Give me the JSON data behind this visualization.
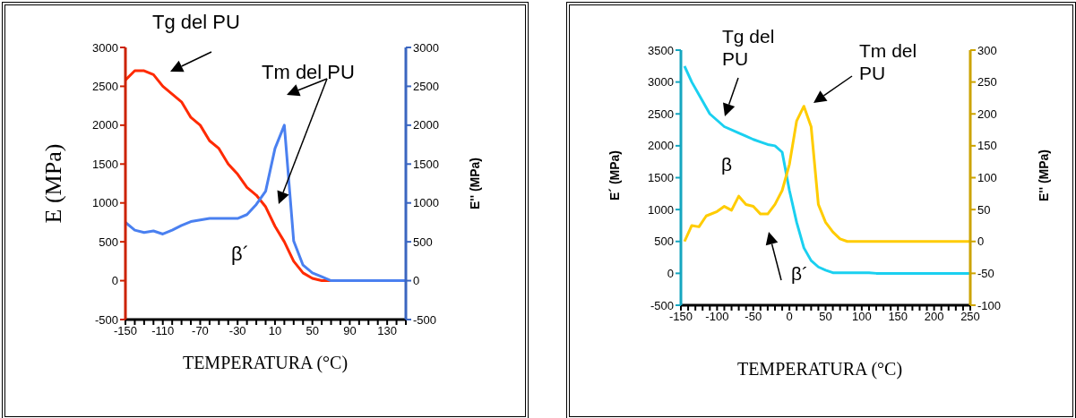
{
  "chart_data": [
    {
      "type": "line",
      "xlabel": "TEMPERATURA (°C)",
      "ylabel": "E (MPa)",
      "y2label": "E'' (MPa)",
      "xlim": [
        -150,
        150
      ],
      "xticks": [
        -150,
        {
          "value": -140,
          "label": null
        },
        {
          "value": -130,
          "label": null
        },
        {
          "value": -120,
          "label": null
        },
        -110,
        {
          "value": -100,
          "label": null
        },
        {
          "value": -90,
          "label": null
        },
        {
          "value": -80,
          "label": null
        },
        -70,
        {
          "value": -60,
          "label": null
        },
        {
          "value": -50,
          "label": null
        },
        {
          "value": -40,
          "label": null
        },
        -30,
        {
          "value": -20,
          "label": null
        },
        {
          "value": -10,
          "label": null
        },
        {
          "value": 0,
          "label": null
        },
        10,
        {
          "value": 20,
          "label": null
        },
        {
          "value": 30,
          "label": null
        },
        {
          "value": 40,
          "label": null
        },
        50,
        {
          "value": 60,
          "label": null
        },
        {
          "value": 70,
          "label": null
        },
        {
          "value": 80,
          "label": null
        },
        90,
        {
          "value": 100,
          "label": null
        },
        {
          "value": 110,
          "label": null
        },
        {
          "value": 120,
          "label": null
        },
        130,
        {
          "value": 140,
          "label": null
        },
        {
          "value": 150,
          "label": null
        }
      ],
      "ylim": [
        -500,
        3000
      ],
      "yticks": [
        -500,
        0,
        500,
        1000,
        1500,
        2000,
        2500,
        3000
      ],
      "y2lim": [
        -500,
        3000
      ],
      "y2ticks": [
        -500,
        0,
        500,
        1000,
        1500,
        2000,
        2500,
        3000
      ],
      "series": [
        {
          "color": "#ff2a00",
          "x": [
            -150,
            -140,
            -130,
            -120,
            -110,
            -100,
            -90,
            -80,
            -70,
            -60,
            -50,
            -40,
            -30,
            -20,
            -10,
            0,
            10,
            20,
            30,
            40,
            50,
            60,
            70
          ],
          "values": [
            2580,
            2700,
            2700,
            2650,
            2500,
            2400,
            2300,
            2100,
            2000,
            1800,
            1700,
            1500,
            1370,
            1200,
            1100,
            950,
            700,
            500,
            250,
            100,
            30,
            0,
            0
          ]
        },
        {
          "color": "#4a80f0",
          "axis": "y2",
          "x": [
            -150,
            -140,
            -130,
            -120,
            -110,
            -100,
            -90,
            -80,
            -70,
            -60,
            -50,
            -40,
            -30,
            -20,
            -10,
            0,
            10,
            20,
            30,
            40,
            50,
            60,
            70,
            80,
            90,
            100,
            110,
            120,
            130,
            140,
            150
          ],
          "values": [
            750,
            650,
            620,
            640,
            600,
            650,
            710,
            760,
            780,
            800,
            800,
            800,
            800,
            850,
            980,
            1150,
            1700,
            2000,
            510,
            200,
            100,
            50,
            0,
            0,
            0,
            0,
            0,
            0,
            0,
            0,
            0
          ]
        }
      ],
      "annotations": [
        "Tg del PU",
        "Tm del PU",
        "β´"
      ]
    },
    {
      "type": "line",
      "xlabel": "TEMPERATURA (°C)",
      "ylabel": "E´ (MPa)",
      "y2label": "E'' (MPa)",
      "xlim": [
        -150,
        250
      ],
      "xticks": [
        -150,
        {
          "value": -140,
          "label": null
        },
        {
          "value": -130,
          "label": null
        },
        {
          "value": -120,
          "label": null
        },
        {
          "value": -110,
          "label": null
        },
        -100,
        {
          "value": -90,
          "label": null
        },
        {
          "value": -80,
          "label": null
        },
        {
          "value": -70,
          "label": null
        },
        {
          "value": -60,
          "label": null
        },
        -50,
        {
          "value": -40,
          "label": null
        },
        {
          "value": -30,
          "label": null
        },
        {
          "value": -20,
          "label": null
        },
        {
          "value": -10,
          "label": null
        },
        0,
        {
          "value": 10,
          "label": null
        },
        {
          "value": 20,
          "label": null
        },
        {
          "value": 30,
          "label": null
        },
        {
          "value": 40,
          "label": null
        },
        50,
        {
          "value": 60,
          "label": null
        },
        {
          "value": 70,
          "label": null
        },
        {
          "value": 80,
          "label": null
        },
        {
          "value": 90,
          "label": null
        },
        100,
        {
          "value": 110,
          "label": null
        },
        {
          "value": 120,
          "label": null
        },
        {
          "value": 130,
          "label": null
        },
        {
          "value": 140,
          "label": null
        },
        150,
        {
          "value": 160,
          "label": null
        },
        {
          "value": 170,
          "label": null
        },
        {
          "value": 180,
          "label": null
        },
        {
          "value": 190,
          "label": null
        },
        200,
        {
          "value": 210,
          "label": null
        },
        {
          "value": 220,
          "label": null
        },
        {
          "value": 230,
          "label": null
        },
        {
          "value": 240,
          "label": null
        },
        250
      ],
      "ylim": [
        -500,
        3500
      ],
      "yticks": [
        -500,
        0,
        500,
        1000,
        1500,
        2000,
        2500,
        3000,
        3500
      ],
      "y2lim": [
        -100,
        300
      ],
      "y2ticks": [
        -100,
        -50,
        0,
        50,
        100,
        150,
        200,
        250,
        300
      ],
      "series": [
        {
          "color": "#1ad0f0",
          "x": [
            -145,
            -135,
            -120,
            -110,
            -90,
            -70,
            -60,
            -50,
            -40,
            -30,
            -20,
            -10,
            0,
            10,
            20,
            30,
            40,
            50,
            60,
            110,
            120,
            250
          ],
          "values": [
            3250,
            3000,
            2700,
            2500,
            2300,
            2200,
            2150,
            2100,
            2060,
            2020,
            2000,
            1900,
            1300,
            800,
            400,
            200,
            100,
            50,
            10,
            10,
            0,
            0
          ]
        },
        {
          "color": "#ffcc00",
          "axis": "y2",
          "x": [
            -145,
            -135,
            -125,
            -115,
            -100,
            -90,
            -80,
            -70,
            -60,
            -50,
            -40,
            -30,
            -20,
            -10,
            0,
            10,
            20,
            30,
            40,
            50,
            60,
            70,
            80,
            250
          ],
          "values": [
            0,
            25,
            23,
            40,
            47,
            55,
            49,
            71,
            58,
            55,
            43,
            43,
            58,
            80,
            121,
            189,
            212,
            180,
            58,
            30,
            15,
            4,
            0,
            0
          ]
        }
      ],
      "annotations": [
        "Tg del PU",
        "Tm del PU",
        "β",
        "β´"
      ]
    }
  ]
}
